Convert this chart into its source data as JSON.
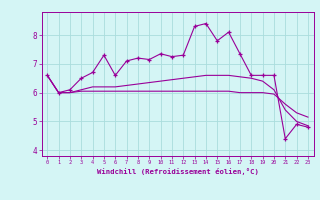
{
  "xlabel": "Windchill (Refroidissement éolien,°C)",
  "x": [
    0,
    1,
    2,
    3,
    4,
    5,
    6,
    7,
    8,
    9,
    10,
    11,
    12,
    13,
    14,
    15,
    16,
    17,
    18,
    19,
    20,
    21,
    22,
    23
  ],
  "line1": [
    6.6,
    6.0,
    6.1,
    6.5,
    6.7,
    7.3,
    6.6,
    7.1,
    7.2,
    7.15,
    7.35,
    7.25,
    7.3,
    8.3,
    8.4,
    7.8,
    8.1,
    7.35,
    6.6,
    6.6,
    6.6,
    4.4,
    4.9,
    4.8
  ],
  "line2": [
    6.6,
    6.0,
    6.0,
    6.1,
    6.2,
    6.2,
    6.2,
    6.25,
    6.3,
    6.35,
    6.4,
    6.45,
    6.5,
    6.55,
    6.6,
    6.6,
    6.6,
    6.55,
    6.5,
    6.4,
    6.1,
    5.4,
    5.0,
    4.85
  ],
  "line3": [
    6.6,
    6.0,
    6.0,
    6.05,
    6.05,
    6.05,
    6.05,
    6.05,
    6.05,
    6.05,
    6.05,
    6.05,
    6.05,
    6.05,
    6.05,
    6.05,
    6.05,
    6.0,
    6.0,
    6.0,
    5.95,
    5.6,
    5.3,
    5.15
  ],
  "line_color": "#990099",
  "bg_color": "#d4f5f5",
  "grid_color": "#aadddd",
  "ylim": [
    3.8,
    8.8
  ],
  "xlim": [
    -0.5,
    23.5
  ],
  "yticks": [
    4,
    5,
    6,
    7,
    8
  ],
  "xticks": [
    0,
    1,
    2,
    3,
    4,
    5,
    6,
    7,
    8,
    9,
    10,
    11,
    12,
    13,
    14,
    15,
    16,
    17,
    18,
    19,
    20,
    21,
    22,
    23
  ]
}
